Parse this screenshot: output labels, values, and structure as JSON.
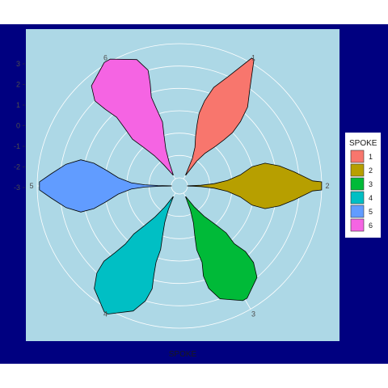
{
  "colors": {
    "plot_bg": "#000080",
    "panel_bg": "#ADD8E6",
    "grid": "#FFFFFF",
    "text": "#1A1A1A",
    "axis_text": "#4D4D4D",
    "legend_bg": "#FFFFFF"
  },
  "chart_data": {
    "type": "violin-polar",
    "title": "",
    "xlabel": "SPOKE",
    "ylabel": "",
    "y_ticks": [
      "3",
      "2",
      "1",
      "0",
      "-1",
      "-2",
      "-3"
    ],
    "y_range": [
      -3,
      3
    ],
    "spoke_labels": [
      "1",
      "2",
      "3",
      "4",
      "5",
      "6"
    ],
    "grid": true,
    "coord": "polar",
    "legend": {
      "title": "SPOKE",
      "position": "right",
      "entries": [
        {
          "label": "1",
          "color": "#F8766D"
        },
        {
          "label": "2",
          "color": "#B79F00"
        },
        {
          "label": "3",
          "color": "#00BA38"
        },
        {
          "label": "4",
          "color": "#00BFC4"
        },
        {
          "label": "5",
          "color": "#619CFF"
        },
        {
          "label": "6",
          "color": "#F564E3"
        }
      ]
    },
    "series": [
      {
        "name": "1",
        "y": [
          -2.8,
          -2.0,
          -1.5,
          -1.0,
          -0.5,
          0.0,
          0.6,
          1.3,
          2.0,
          3.2
        ],
        "density": [
          0.02,
          0.18,
          0.3,
          0.45,
          0.52,
          0.55,
          0.5,
          0.4,
          0.22,
          0.02
        ]
      },
      {
        "name": "2",
        "y": [
          -3.0,
          -2.4,
          -1.8,
          -1.2,
          -0.6,
          0.0,
          0.6,
          1.2,
          1.8,
          2.6,
          3.0
        ],
        "density": [
          0.02,
          0.06,
          0.14,
          0.24,
          0.38,
          0.55,
          0.55,
          0.42,
          0.26,
          0.08,
          0.06
        ]
      },
      {
        "name": "3",
        "y": [
          -2.8,
          -2.2,
          -1.6,
          -1.0,
          -0.4,
          0.2,
          0.8,
          1.4,
          2.0,
          2.5
        ],
        "density": [
          0.02,
          0.2,
          0.34,
          0.48,
          0.55,
          0.5,
          0.56,
          0.52,
          0.38,
          0.04
        ]
      },
      {
        "name": "4",
        "y": [
          -2.8,
          -2.2,
          -1.6,
          -1.0,
          -0.4,
          0.2,
          0.8,
          1.4,
          2.0,
          2.6,
          3.2
        ],
        "density": [
          0.02,
          0.18,
          0.3,
          0.42,
          0.5,
          0.48,
          0.52,
          0.56,
          0.5,
          0.36,
          0.03
        ]
      },
      {
        "name": "5",
        "y": [
          -3.0,
          -2.4,
          -1.8,
          -1.2,
          -0.6,
          0.0,
          0.6,
          1.2,
          1.8,
          2.4,
          2.9
        ],
        "density": [
          0.02,
          0.04,
          0.07,
          0.14,
          0.28,
          0.45,
          0.55,
          0.55,
          0.4,
          0.2,
          0.06
        ]
      },
      {
        "name": "6",
        "y": [
          -2.8,
          -2.2,
          -1.6,
          -1.0,
          -0.4,
          0.2,
          0.8,
          1.4,
          2.0,
          2.6,
          3.1
        ],
        "density": [
          0.02,
          0.24,
          0.36,
          0.48,
          0.56,
          0.5,
          0.46,
          0.52,
          0.55,
          0.42,
          0.05
        ]
      }
    ]
  }
}
